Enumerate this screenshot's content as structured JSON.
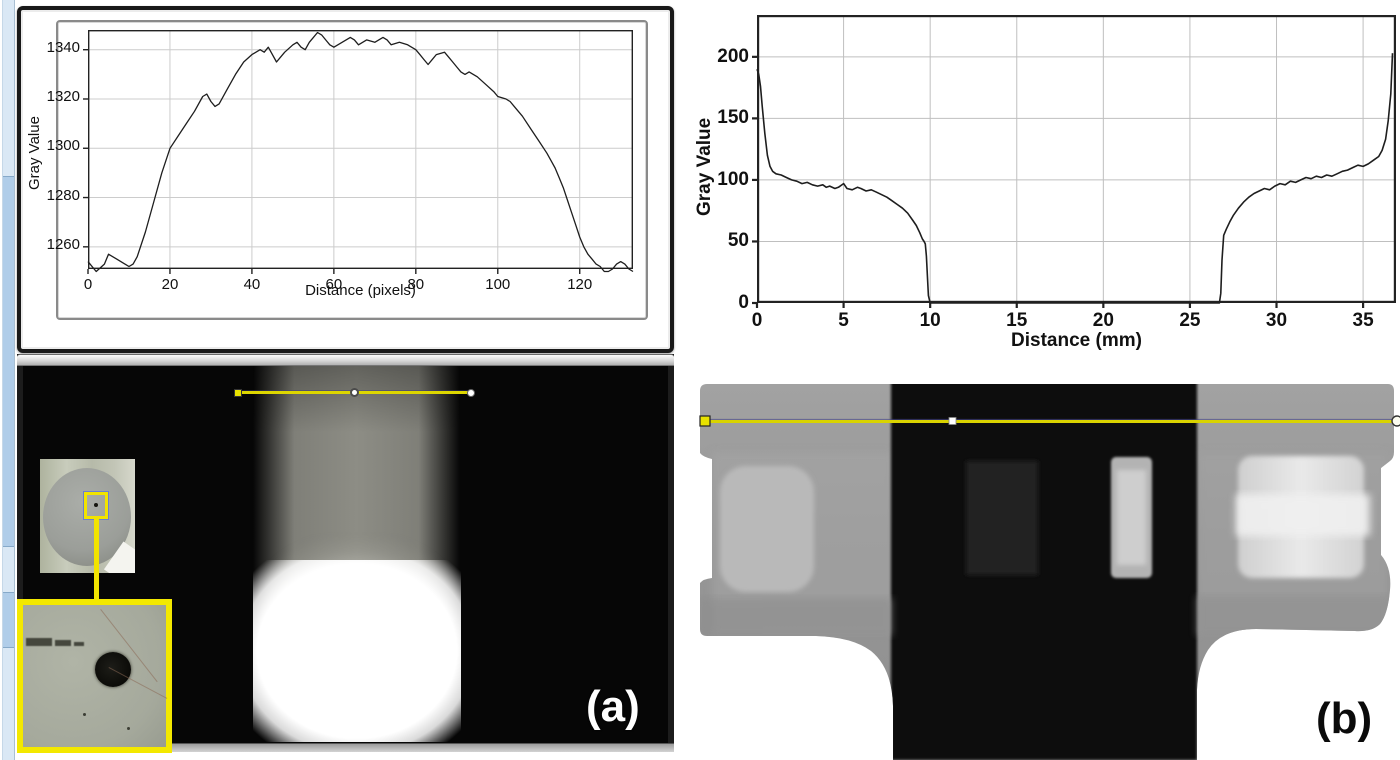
{
  "panels": {
    "a": {
      "label": "(a)"
    },
    "b": {
      "label": "(b)"
    }
  },
  "annotation": {
    "profile_line_color": "#ddd600",
    "roi_color": "#f2e400"
  },
  "chart_data": [
    {
      "id": "plot-a",
      "type": "line",
      "title": "",
      "xlabel": "Distance (pixels)",
      "ylabel": "Gray Value",
      "xlim": [
        0,
        133
      ],
      "ylim": [
        1251,
        1348
      ],
      "xticks": [
        0,
        20,
        40,
        60,
        80,
        100,
        120
      ],
      "yticks": [
        1260,
        1280,
        1300,
        1320,
        1340
      ],
      "grid": true,
      "legend": false,
      "series": [
        {
          "name": "gray-value-profile",
          "x": [
            0,
            2,
            4,
            5,
            7,
            9,
            10,
            11,
            12,
            14,
            16,
            18,
            20,
            22,
            24,
            26,
            28,
            29,
            30,
            31,
            32,
            34,
            36,
            38,
            40,
            42,
            43,
            44,
            45,
            46,
            47,
            48,
            50,
            51,
            52,
            53,
            54,
            55,
            56,
            57,
            58,
            59,
            60,
            62,
            64,
            65,
            66,
            68,
            70,
            72,
            73,
            74,
            76,
            78,
            80,
            81,
            82,
            83,
            84,
            85,
            87,
            88,
            89,
            90,
            91,
            92,
            93,
            95,
            97,
            99,
            100,
            102,
            103,
            104,
            106,
            108,
            110,
            112,
            113,
            114,
            115,
            116,
            117,
            118,
            119,
            120,
            121,
            122,
            123,
            124,
            125,
            126,
            127,
            128,
            129,
            130,
            131,
            132,
            133
          ],
          "y": [
            1254,
            1250,
            1253,
            1257,
            1255,
            1253,
            1252,
            1253,
            1256,
            1266,
            1278,
            1290,
            1300,
            1305,
            1310,
            1315,
            1321,
            1322,
            1319,
            1317,
            1318,
            1324,
            1330,
            1335,
            1338,
            1340,
            1339,
            1341,
            1338,
            1335,
            1337,
            1339,
            1342,
            1343,
            1341,
            1340,
            1343,
            1345,
            1347,
            1346,
            1344,
            1342,
            1341,
            1343,
            1345,
            1344,
            1342,
            1344,
            1343,
            1345,
            1344,
            1342,
            1343,
            1342,
            1340,
            1338,
            1336,
            1334,
            1336,
            1338,
            1339,
            1337,
            1335,
            1333,
            1331,
            1330,
            1331,
            1329,
            1326,
            1323,
            1321,
            1320,
            1319,
            1317,
            1313,
            1308,
            1303,
            1298,
            1295,
            1292,
            1288,
            1284,
            1279,
            1274,
            1269,
            1264,
            1260,
            1257,
            1255,
            1253,
            1252,
            1250,
            1250,
            1251,
            1253,
            1254,
            1253,
            1251,
            1250
          ]
        }
      ]
    },
    {
      "id": "plot-b",
      "type": "line",
      "title": "",
      "xlabel": "Distance (mm)",
      "ylabel": "Gray Value",
      "xlim": [
        0,
        36.9
      ],
      "ylim": [
        0,
        234
      ],
      "xticks": [
        0,
        5,
        10,
        15,
        20,
        25,
        30,
        35
      ],
      "yticks": [
        0,
        50,
        100,
        150,
        200
      ],
      "grid": true,
      "legend": false,
      "series": [
        {
          "name": "gray-value-profile",
          "x": [
            0,
            0.1,
            0.2,
            0.3,
            0.45,
            0.6,
            0.75,
            0.9,
            1.1,
            1.4,
            1.7,
            2.0,
            2.3,
            2.6,
            2.9,
            3.2,
            3.5,
            3.8,
            4.0,
            4.2,
            4.5,
            4.7,
            5.0,
            5.2,
            5.5,
            5.8,
            6.0,
            6.3,
            6.6,
            6.9,
            7.2,
            7.5,
            7.8,
            8.1,
            8.4,
            8.7,
            9.0,
            9.2,
            9.4,
            9.55,
            9.65,
            9.72,
            9.78,
            9.84,
            9.9,
            10.0,
            26.7,
            26.78,
            26.85,
            26.95,
            27.1,
            27.3,
            27.5,
            27.8,
            28.1,
            28.4,
            28.7,
            29.0,
            29.3,
            29.6,
            29.9,
            30.2,
            30.5,
            30.8,
            31.1,
            31.4,
            31.7,
            32.0,
            32.3,
            32.6,
            32.9,
            33.2,
            33.5,
            33.8,
            34.1,
            34.4,
            34.7,
            35.0,
            35.3,
            35.6,
            35.9,
            36.1,
            36.3,
            36.45,
            36.6,
            36.7
          ],
          "y": [
            190,
            186,
            176,
            160,
            138,
            120,
            111,
            107,
            105,
            104,
            102,
            100,
            99,
            97,
            98,
            96,
            95,
            96,
            94,
            95,
            93,
            94,
            97,
            93,
            92,
            94,
            93,
            91,
            92,
            90,
            88,
            86,
            83,
            80,
            77,
            73,
            67,
            63,
            57,
            52,
            50,
            48,
            38,
            22,
            6,
            0,
            0,
            8,
            35,
            55,
            60,
            66,
            71,
            77,
            82,
            86,
            89,
            91,
            93,
            92,
            95,
            97,
            96,
            99,
            98,
            100,
            102,
            101,
            103,
            102,
            104,
            103,
            105,
            107,
            108,
            110,
            112,
            111,
            113,
            116,
            119,
            124,
            133,
            148,
            170,
            203
          ]
        }
      ]
    }
  ]
}
